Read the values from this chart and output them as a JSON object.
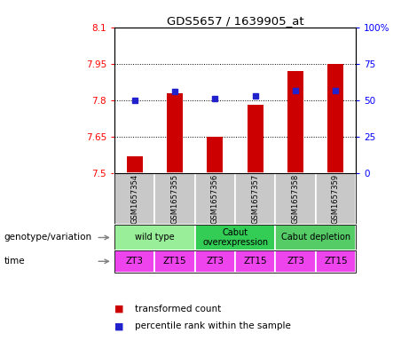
{
  "title": "GDS5657 / 1639905_at",
  "samples": [
    "GSM1657354",
    "GSM1657355",
    "GSM1657356",
    "GSM1657357",
    "GSM1657358",
    "GSM1657359"
  ],
  "red_values": [
    7.57,
    7.83,
    7.65,
    7.78,
    7.92,
    7.95
  ],
  "blue_percentiles": [
    50,
    56,
    51,
    53,
    57,
    57
  ],
  "ymin": 7.5,
  "ymax": 8.1,
  "yticks": [
    7.5,
    7.65,
    7.8,
    7.95,
    8.1
  ],
  "ytick_labels": [
    "7.5",
    "7.65",
    "7.8",
    "7.95",
    "8.1"
  ],
  "y2ticks": [
    0,
    25,
    50,
    75,
    100
  ],
  "y2tick_labels": [
    "0",
    "25",
    "50",
    "75",
    "100%"
  ],
  "bar_bottom": 7.5,
  "genotype_groups": [
    {
      "label": "wild type",
      "start": 0,
      "end": 2,
      "color": "#99EE99"
    },
    {
      "label": "Cabut\noverexpression",
      "start": 2,
      "end": 4,
      "color": "#33CC55"
    },
    {
      "label": "Cabut depletion",
      "start": 4,
      "end": 6,
      "color": "#55CC66"
    }
  ],
  "time_labels": [
    "ZT3",
    "ZT15",
    "ZT3",
    "ZT15",
    "ZT3",
    "ZT15"
  ],
  "time_color": "#EE44EE",
  "sample_bg_color": "#C8C8C8",
  "red_color": "#CC0000",
  "blue_color": "#2222CC",
  "legend_red": "transformed count",
  "legend_blue": "percentile rank within the sample",
  "genotype_label": "genotype/variation",
  "time_label": "time",
  "bar_width": 0.4
}
